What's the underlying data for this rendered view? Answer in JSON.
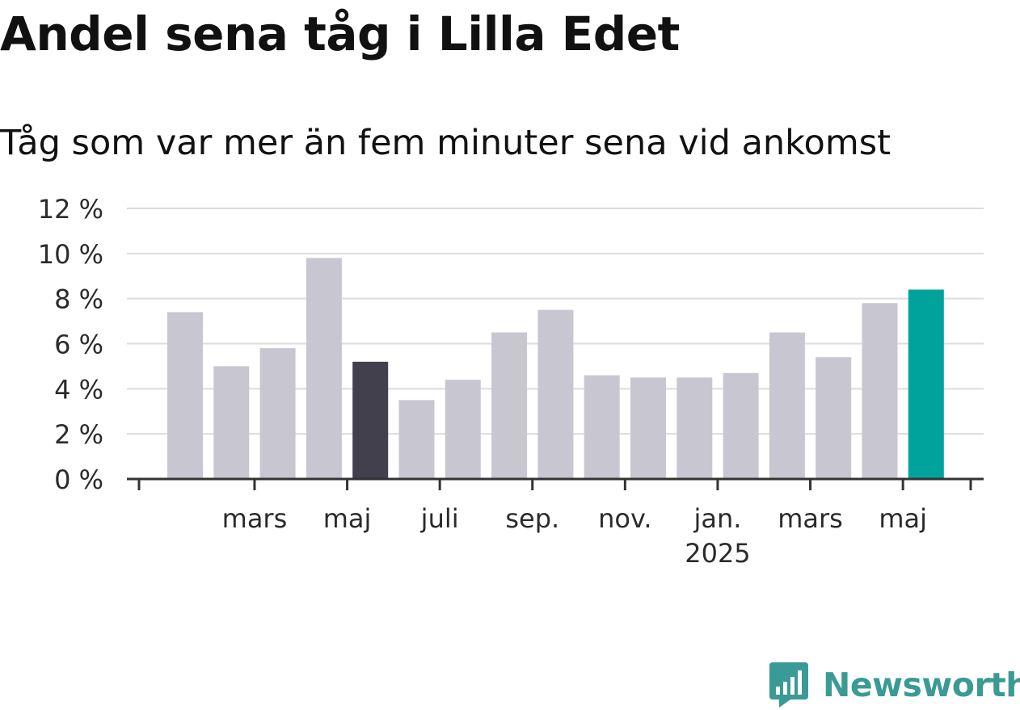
{
  "chart_data": {
    "type": "bar",
    "title": "Andel sena tåg i Lilla Edet",
    "subtitle": "Tåg som var mer än fem minuter sena vid ankomst",
    "y_ticks": [
      "0 %",
      "2 %",
      "4 %",
      "6 %",
      "8 %",
      "10 %",
      "12 %"
    ],
    "ylim": [
      0,
      12
    ],
    "x_tick_labels": [
      {
        "index": 1,
        "label": "mars",
        "sub": ""
      },
      {
        "index": 3,
        "label": "maj",
        "sub": ""
      },
      {
        "index": 5,
        "label": "juli",
        "sub": ""
      },
      {
        "index": 7,
        "label": "sep.",
        "sub": ""
      },
      {
        "index": 9,
        "label": "nov.",
        "sub": ""
      },
      {
        "index": 11,
        "label": "jan.",
        "sub": "2025"
      },
      {
        "index": 13,
        "label": "mars",
        "sub": ""
      },
      {
        "index": 15,
        "label": "maj",
        "sub": ""
      }
    ],
    "values": [
      7.4,
      5.0,
      5.8,
      9.8,
      5.2,
      3.5,
      4.4,
      6.5,
      7.5,
      4.6,
      4.5,
      4.5,
      4.7,
      6.5,
      5.4,
      7.8,
      8.4
    ],
    "bar_colors": [
      "#c8c7d1",
      "#c8c7d1",
      "#c8c7d1",
      "#c8c7d1",
      "#42404d",
      "#c8c7d1",
      "#c8c7d1",
      "#c8c7d1",
      "#c8c7d1",
      "#c8c7d1",
      "#c8c7d1",
      "#c8c7d1",
      "#c8c7d1",
      "#c8c7d1",
      "#c8c7d1",
      "#c8c7d1",
      "#00a39b"
    ],
    "grid": true
  },
  "brand": {
    "name": "Newsworthy",
    "icon": "newsworthy-logo-icon",
    "color": "#3a9a95"
  }
}
